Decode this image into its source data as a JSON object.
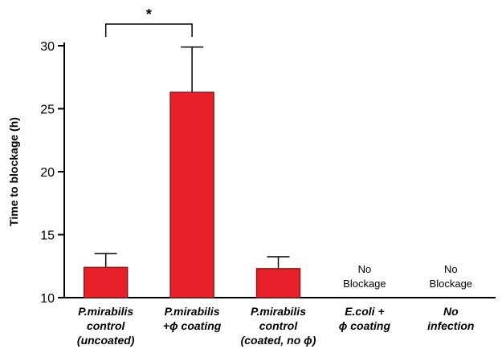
{
  "chart_data": {
    "type": "bar",
    "ylabel": "Time to blockage (h)",
    "ylim": [
      10,
      30
    ],
    "yticks": [
      10,
      15,
      20,
      25,
      30
    ],
    "bar_color": "#e8202a",
    "categories": [
      {
        "lines": [
          "P.mirabilis",
          "control",
          "(uncoated)"
        ],
        "value": 12.4,
        "error": 1.1,
        "no_data": null
      },
      {
        "lines": [
          "P.mirabilis",
          "+ϕ coating"
        ],
        "value": 26.3,
        "error": 3.6,
        "no_data": null
      },
      {
        "lines": [
          "P.mirabilis",
          "control",
          "(coated, no ϕ)"
        ],
        "value": 12.3,
        "error": 0.95,
        "no_data": null
      },
      {
        "lines": [
          "E.coli +",
          "ϕ coating"
        ],
        "value": null,
        "error": null,
        "no_data": [
          "No",
          "Blockage"
        ]
      },
      {
        "lines": [
          "No",
          "infection"
        ],
        "value": null,
        "error": null,
        "no_data": [
          "No",
          "Blockage"
        ]
      }
    ],
    "significance": {
      "from": 0,
      "to": 1,
      "label": "*"
    }
  }
}
